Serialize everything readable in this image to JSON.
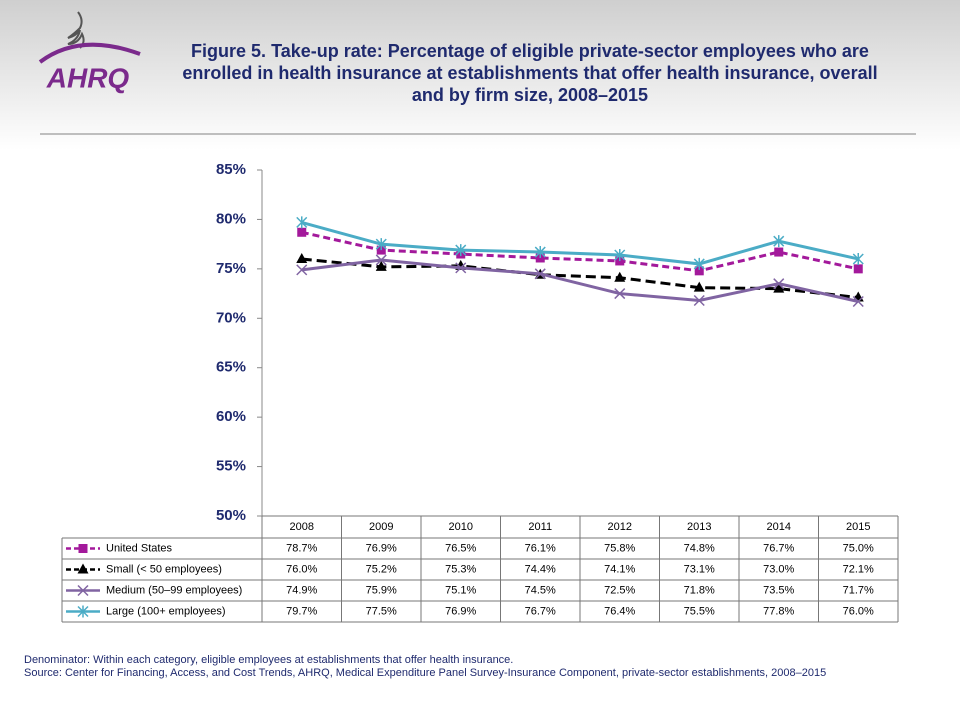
{
  "title": "Figure 5. Take-up rate: Percentage of eligible private-sector employees who are enrolled in health insurance at establishments that offer health insurance, overall and by firm size, 2008–2015",
  "logo": "AHRQ",
  "chart_data": {
    "type": "line",
    "categories": [
      "2008",
      "2009",
      "2010",
      "2011",
      "2012",
      "2013",
      "2014",
      "2015"
    ],
    "ylim": [
      50,
      85
    ],
    "yticks": [
      {
        "value": 50,
        "label": "50%"
      },
      {
        "value": 55,
        "label": "55%"
      },
      {
        "value": 60,
        "label": "60%"
      },
      {
        "value": 65,
        "label": "65%"
      },
      {
        "value": 70,
        "label": "70%"
      },
      {
        "value": 75,
        "label": "75%"
      },
      {
        "value": 80,
        "label": "80%"
      },
      {
        "value": 85,
        "label": "85%"
      }
    ],
    "series": [
      {
        "name": "United States",
        "color": "#a3199b",
        "values": [
          78.7,
          76.9,
          76.5,
          76.1,
          75.8,
          74.8,
          76.7,
          75.0
        ],
        "value_labels": [
          "78.7%",
          "76.9%",
          "76.5%",
          "76.1%",
          "75.8%",
          "74.8%",
          "76.7%",
          "75.0%"
        ]
      },
      {
        "name": "Small (< 50 employees)",
        "color": "#000000",
        "values": [
          76.0,
          75.2,
          75.3,
          74.4,
          74.1,
          73.1,
          73.0,
          72.1
        ],
        "value_labels": [
          "76.0%",
          "75.2%",
          "75.3%",
          "74.4%",
          "74.1%",
          "73.1%",
          "73.0%",
          "72.1%"
        ]
      },
      {
        "name": "Medium (50–99 employees)",
        "color": "#8064a2",
        "values": [
          74.9,
          75.9,
          75.1,
          74.5,
          72.5,
          71.8,
          73.5,
          71.7
        ],
        "value_labels": [
          "74.9%",
          "75.9%",
          "75.1%",
          "74.5%",
          "72.5%",
          "71.8%",
          "73.5%",
          "71.7%"
        ]
      },
      {
        "name": "Large (100+ employees)",
        "color": "#4bacc6",
        "values": [
          79.7,
          77.5,
          76.9,
          76.7,
          76.4,
          75.5,
          77.8,
          76.0
        ],
        "value_labels": [
          "79.7%",
          "77.5%",
          "76.9%",
          "76.7%",
          "76.4%",
          "75.5%",
          "77.8%",
          "76.0%"
        ]
      }
    ]
  },
  "notes": [
    "Denominator: Within each category, eligible employees at establishments that offer health insurance.",
    "Source: Center for Financing, Access, and Cost Trends, AHRQ, Medical Expenditure Panel Survey-Insurance Component, private-sector establishments, 2008–2015"
  ]
}
